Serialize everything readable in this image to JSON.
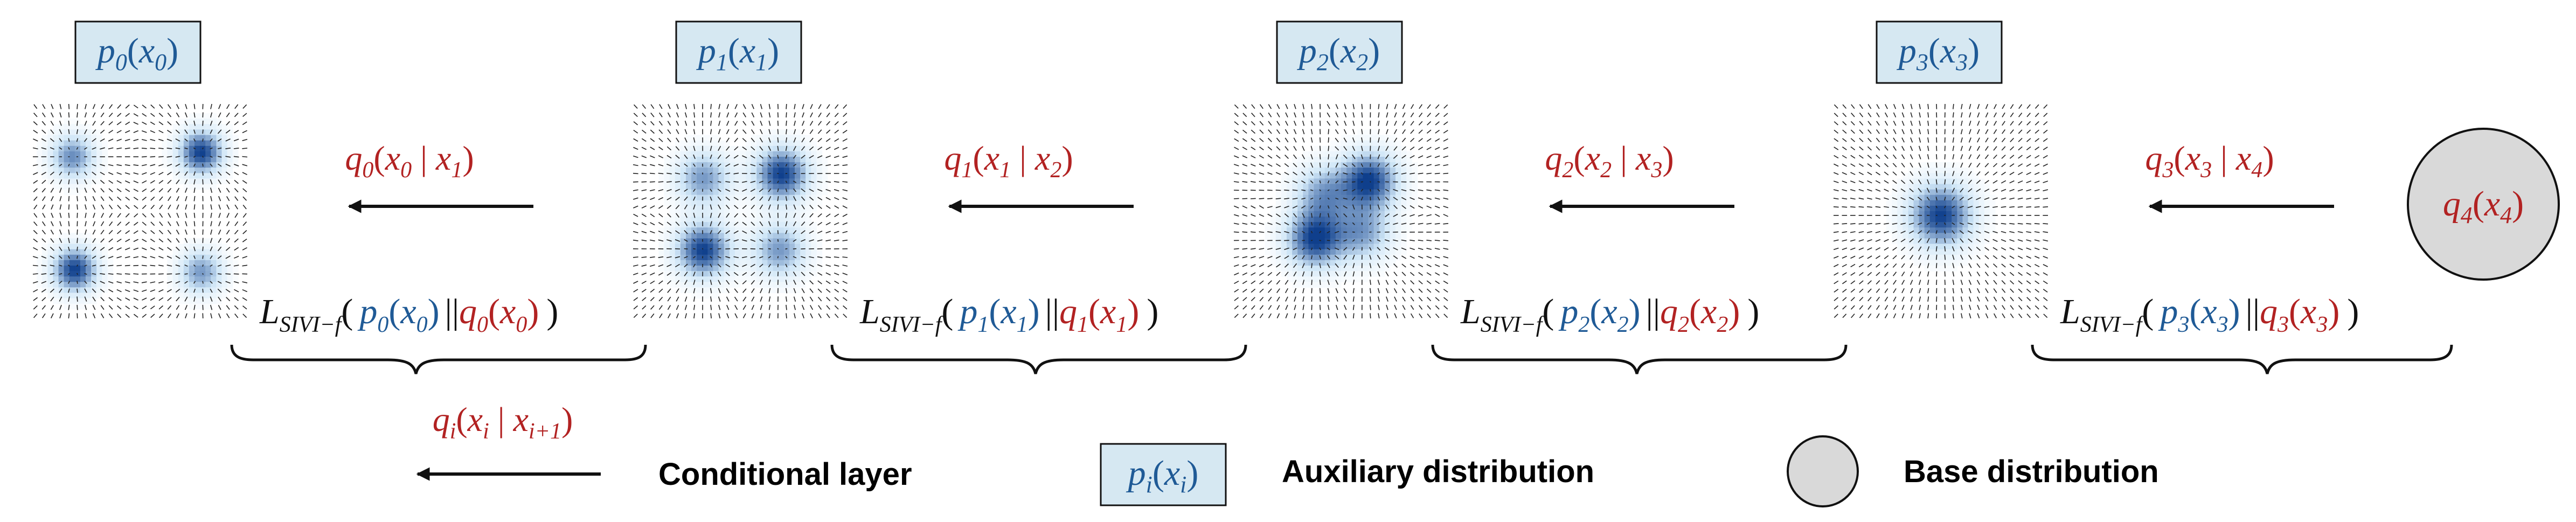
{
  "colors": {
    "red": "#b22222",
    "blue": "#1f5a96",
    "black": "#111111",
    "aux_box_fill": "#d6e8f2",
    "base_fill": "#d9d9d9",
    "density_dark": "#0f3f8c",
    "density_light": "#cfe6f7",
    "quiver": "#222222"
  },
  "stages": [
    {
      "label": {
        "p": "p",
        "sub": "0",
        "var": "x",
        "vsub": "0"
      },
      "density": {
        "modes": [
          {
            "mx": 0.19,
            "my": 0.25,
            "w": 0.7
          },
          {
            "mx": 0.78,
            "my": 0.23,
            "w": 1.0
          },
          {
            "mx": 0.2,
            "my": 0.77,
            "w": 1.0
          },
          {
            "mx": 0.78,
            "my": 0.78,
            "w": 0.65
          }
        ],
        "sigma": 0.07
      },
      "conditional": {
        "q": "q",
        "sub": "0",
        "var": "x",
        "vsub": "0",
        "cond": "x",
        "csub": "1"
      },
      "loss": {
        "L": "L",
        "Lsub": "SIVI−f",
        "p": "p",
        "psub": "0",
        "x": "x",
        "xsub": "0",
        "q": "q",
        "qsub": "0",
        "qx": "x",
        "qxsub": "0"
      }
    },
    {
      "label": {
        "p": "p",
        "sub": "1",
        "var": "x",
        "vsub": "1"
      },
      "density": {
        "modes": [
          {
            "mx": 0.33,
            "my": 0.35,
            "w": 0.65
          },
          {
            "mx": 0.69,
            "my": 0.33,
            "w": 1.0
          },
          {
            "mx": 0.33,
            "my": 0.68,
            "w": 1.0
          },
          {
            "mx": 0.68,
            "my": 0.68,
            "w": 0.65
          }
        ],
        "sigma": 0.085
      },
      "conditional": {
        "q": "q",
        "sub": "1",
        "var": "x",
        "vsub": "1",
        "cond": "x",
        "csub": "2"
      },
      "loss": {
        "L": "L",
        "Lsub": "SIVI−f",
        "p": "p",
        "psub": "1",
        "x": "x",
        "xsub": "1",
        "q": "q",
        "qsub": "1",
        "qx": "x",
        "qxsub": "1"
      }
    },
    {
      "label": {
        "p": "p",
        "sub": "2",
        "var": "x",
        "vsub": "2"
      },
      "density": {
        "modes": [
          {
            "mx": 0.42,
            "my": 0.42,
            "w": 0.6
          },
          {
            "mx": 0.63,
            "my": 0.36,
            "w": 1.0
          },
          {
            "mx": 0.38,
            "my": 0.63,
            "w": 1.0
          },
          {
            "mx": 0.6,
            "my": 0.6,
            "w": 0.6
          }
        ],
        "sigma": 0.09
      },
      "conditional": {
        "q": "q",
        "sub": "2",
        "var": "x",
        "vsub": "2",
        "cond": "x",
        "csub": "3"
      },
      "loss": {
        "L": "L",
        "Lsub": "SIVI−f",
        "p": "p",
        "psub": "2",
        "x": "x",
        "xsub": "2",
        "q": "q",
        "qsub": "2",
        "qx": "x",
        "qxsub": "2"
      }
    },
    {
      "label": {
        "p": "p",
        "sub": "3",
        "var": "x",
        "vsub": "3"
      },
      "density": {
        "modes": [
          {
            "mx": 0.5,
            "my": 0.52,
            "w": 1.0
          }
        ],
        "sigma": 0.1
      },
      "conditional": {
        "q": "q",
        "sub": "3",
        "var": "x",
        "vsub": "3",
        "cond": "x",
        "csub": "4"
      },
      "loss": {
        "L": "L",
        "Lsub": "SIVI−f",
        "p": "p",
        "psub": "3",
        "x": "x",
        "xsub": "3",
        "q": "q",
        "qsub": "3",
        "qx": "x",
        "qxsub": "3"
      }
    }
  ],
  "base": {
    "q": "q",
    "sub": "4",
    "var": "x",
    "vsub": "4"
  },
  "legend": {
    "conditional": {
      "q": "q",
      "sub": "i",
      "var": "x",
      "vsub": "i",
      "cond": "x",
      "csub": "i+1",
      "text": "Conditional layer"
    },
    "auxiliary": {
      "p": "p",
      "sub": "i",
      "var": "x",
      "vsub": "i",
      "text": "Auxiliary distribution"
    },
    "base": {
      "text": "Base distribution"
    }
  }
}
